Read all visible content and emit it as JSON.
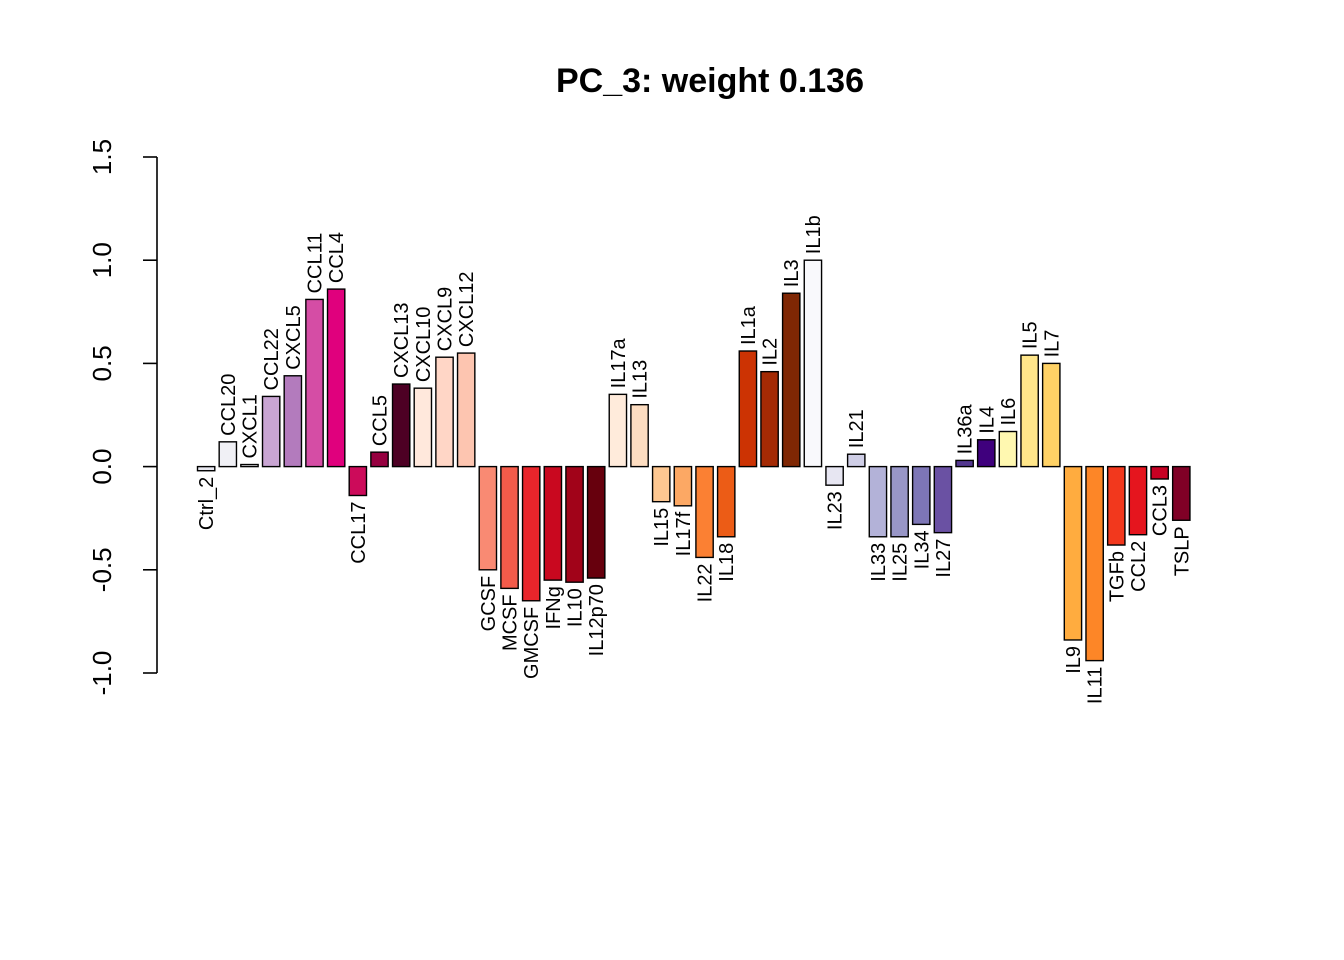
{
  "chart_data": {
    "type": "bar",
    "title": "PC_3: weight 0.136",
    "xlabel": "",
    "ylabel": "",
    "ylim": [
      -1.0,
      1.5
    ],
    "yticks": [
      -1.0,
      -0.5,
      0.0,
      0.5,
      1.0,
      1.5
    ],
    "ytick_labels": [
      "-1.0",
      "-0.5",
      "0.0",
      "0.5",
      "1.0",
      "1.5"
    ],
    "grid": false,
    "legend": "none",
    "categories": [
      "Ctrl_2",
      "CCL20",
      "CXCL1",
      "CCL22",
      "CXCL5",
      "CCL11",
      "CCL4",
      "CCL17",
      "CCL5",
      "CXCL13",
      "CXCL10",
      "CXCL9",
      "CXCL12",
      "GCSF",
      "MCSF",
      "GMCSF",
      "IFNg",
      "IL10",
      "IL12p70",
      "IL17a",
      "IL13",
      "IL15",
      "IL17f",
      "IL22",
      "IL18",
      "IL1a",
      "IL2",
      "IL3",
      "IL1b",
      "IL23",
      "IL21",
      "IL33",
      "IL25",
      "IL34",
      "IL27",
      "IL36a",
      "IL4",
      "IL6",
      "IL5",
      "IL7",
      "IL9",
      "IL11",
      "TGFb",
      "CCL2",
      "CCL3",
      "TSLP"
    ],
    "values": [
      -0.02,
      0.12,
      0.01,
      0.34,
      0.44,
      0.81,
      0.86,
      -0.14,
      0.07,
      0.4,
      0.38,
      0.53,
      0.55,
      -0.5,
      -0.59,
      -0.65,
      -0.55,
      -0.56,
      -0.54,
      0.35,
      0.3,
      -0.17,
      -0.19,
      -0.44,
      -0.34,
      0.56,
      0.46,
      0.84,
      1.0,
      -0.09,
      0.06,
      -0.34,
      -0.34,
      -0.28,
      -0.32,
      0.03,
      0.13,
      0.17,
      0.54,
      0.5,
      -0.84,
      -0.94,
      -0.38,
      -0.33,
      -0.06,
      -0.26
    ],
    "colors": [
      "#E8E8F0",
      "#F0F0F5",
      "#F5F5FA",
      "#C9A5D3",
      "#B37BBD",
      "#D54DA5",
      "#E0007D",
      "#CC0B5A",
      "#960040",
      "#4D0024",
      "#FFE8DC",
      "#FFD6C6",
      "#FDC5B0",
      "#F98A73",
      "#F45B4A",
      "#E8252B",
      "#C9081F",
      "#A10319",
      "#67000D",
      "#FFEBDB",
      "#FDDDC1",
      "#FDC791",
      "#FCA864",
      "#FB8033",
      "#EC5C16",
      "#CC3303",
      "#A42A04",
      "#7F2704",
      "#F9F9FC",
      "#E7E6F2",
      "#CFCEE6",
      "#B3B2D8",
      "#9896C7",
      "#7D76B6",
      "#6A51A3",
      "#53378F",
      "#3F007D",
      "#FFF8B0",
      "#FFE68A",
      "#FFD266",
      "#FFAC3F",
      "#FD8627",
      "#F2381D",
      "#E5151E",
      "#C70023",
      "#800026"
    ]
  }
}
